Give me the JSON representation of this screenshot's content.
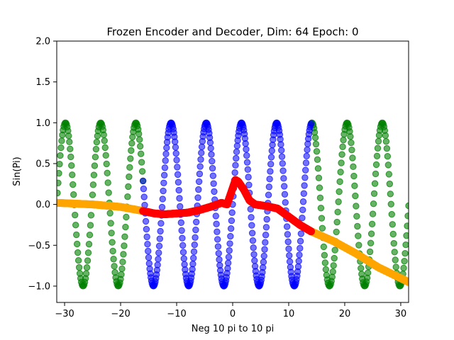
{
  "chart_data": {
    "type": "scatter",
    "title": "Frozen Encoder and Decoder, Dim: 64 Epoch: 0",
    "xlabel": "Neg 10 pi to 10 pi",
    "ylabel": "Sin(Pi)",
    "xlim": [
      -31.4,
      31.4
    ],
    "ylim": [
      -1.2,
      2.0
    ],
    "xticks": [
      -30,
      -20,
      -10,
      0,
      10,
      20,
      30
    ],
    "yticks": [
      -1.0,
      -0.5,
      0.0,
      0.5,
      1.0,
      1.5,
      2.0
    ],
    "ytick_labels": [
      "−1.0",
      "−0.5",
      "0.0",
      "0.5",
      "1.0",
      "1.5",
      "2.0"
    ],
    "xtick_labels": [
      "−30",
      "−20",
      "−10",
      "0",
      "10",
      "20",
      "30"
    ],
    "grid": false,
    "legend": "none",
    "series": [
      {
        "color": "#008000",
        "marker": "circle",
        "alpha": 0.6,
        "function": "sin(x)",
        "x_range": [
          -31.4,
          31.4
        ],
        "n_points": 500,
        "segments": [
          [
            -31.4,
            -16.0
          ],
          [
            14.0,
            31.4
          ]
        ]
      },
      {
        "color": "#0000ff",
        "marker": "circle",
        "alpha": 0.55,
        "function": "sin(x)",
        "x_range": [
          -16.0,
          14.0
        ],
        "n_points": 300
      },
      {
        "color": "#ffa500",
        "marker": "circle",
        "alpha": 1.0,
        "description_points": [
          [
            -31.4,
            0.02
          ],
          [
            -25,
            0.0
          ],
          [
            -20,
            -0.03
          ],
          [
            -16,
            -0.08
          ]
        ],
        "segments_points": [
          [
            [
              -31.4,
              0.02
            ],
            [
              -25,
              0.0
            ],
            [
              -20,
              -0.03
            ],
            [
              -16,
              -0.08
            ]
          ],
          [
            [
              14,
              -0.33
            ],
            [
              18,
              -0.45
            ],
            [
              22,
              -0.6
            ],
            [
              26,
              -0.77
            ],
            [
              31.4,
              -0.95
            ]
          ]
        ]
      },
      {
        "color": "#ff0000",
        "marker": "circle",
        "alpha": 1.0,
        "points": [
          [
            -16,
            -0.08
          ],
          [
            -14,
            -0.11
          ],
          [
            -12,
            -0.12
          ],
          [
            -10,
            -0.11
          ],
          [
            -8,
            -0.1
          ],
          [
            -6,
            -0.07
          ],
          [
            -4,
            -0.03
          ],
          [
            -2,
            0.02
          ],
          [
            -1,
            0.0
          ],
          [
            0,
            0.2
          ],
          [
            0.5,
            0.3
          ],
          [
            1,
            0.28
          ],
          [
            2,
            0.18
          ],
          [
            3,
            0.05
          ],
          [
            4,
            0.0
          ],
          [
            6,
            -0.02
          ],
          [
            8,
            -0.05
          ],
          [
            10,
            -0.15
          ],
          [
            12,
            -0.25
          ],
          [
            14,
            -0.33
          ]
        ]
      }
    ]
  }
}
